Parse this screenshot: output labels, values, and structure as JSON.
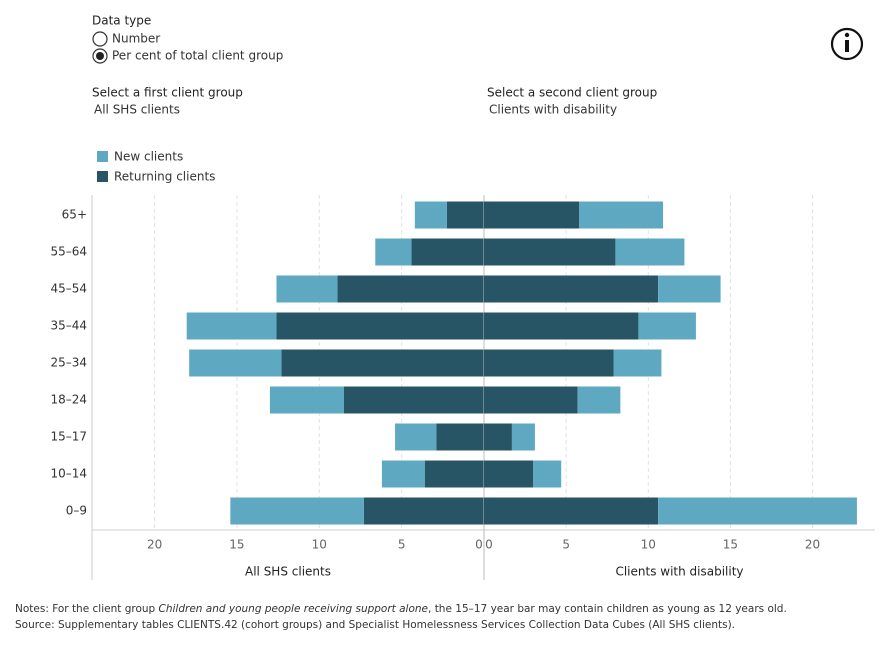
{
  "controls": {
    "data_type_label": "Data type",
    "options": [
      "Number",
      "Per cent of total client group"
    ],
    "selected": 1,
    "first_group_label": "Select a first client group",
    "first_group": "All SHS clients",
    "second_group_label": "Select a second client group",
    "second_group": "Clients with disability"
  },
  "chart_data": {
    "type": "bar",
    "categories": [
      "65+",
      "55–64",
      "45–54",
      "35–44",
      "25–34",
      "18–24",
      "15–17",
      "10–14",
      "0–9"
    ],
    "series": [
      {
        "name": "New clients",
        "color": "#5ea9c1"
      },
      {
        "name": "Returning clients",
        "color": "#275565"
      }
    ],
    "grid": true,
    "panels": [
      {
        "label": "All SHS clients",
        "direction": "left",
        "xlim": [
          0,
          23.8
        ],
        "xticks": [
          0,
          5,
          10,
          15,
          20
        ],
        "values": [
          [
            1.95,
            2.2,
            3.7,
            5.45,
            5.6,
            4.5,
            2.5,
            2.6,
            8.1
          ],
          [
            2.25,
            4.4,
            8.9,
            12.6,
            12.3,
            8.5,
            2.9,
            3.6,
            7.3
          ]
        ]
      },
      {
        "label": "Clients with disability",
        "direction": "right",
        "xlim": [
          0,
          23.8
        ],
        "xticks": [
          0,
          5,
          10,
          15,
          20
        ],
        "values": [
          [
            5.1,
            4.2,
            3.8,
            3.5,
            2.9,
            2.6,
            1.4,
            1.7,
            12.1
          ],
          [
            5.8,
            8.0,
            10.6,
            9.4,
            7.9,
            5.7,
            1.7,
            3.0,
            10.6
          ]
        ]
      }
    ]
  },
  "notes": {
    "prefix": "Notes: For the client group ",
    "italic": "Children and young people receiving support alone",
    "suffix": ", the 15–17 year bar may contain children as young as 12 years old.",
    "source": "Source: Supplementary tables CLIENTS.42  (cohort groups) and Specialist Homelessness Services Collection Data Cubes (All SHS clients)."
  }
}
